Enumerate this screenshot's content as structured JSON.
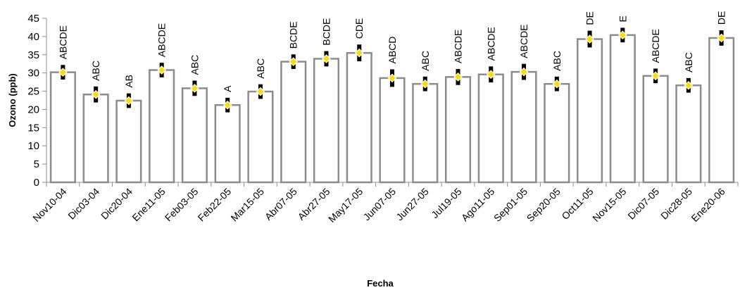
{
  "chart_data": {
    "type": "bar",
    "title": "",
    "xlabel": "Fecha",
    "ylabel": "Ozono (ppb)",
    "ylim": [
      0,
      45
    ],
    "yticks": [
      0,
      5,
      10,
      15,
      20,
      25,
      30,
      35,
      40,
      45
    ],
    "grid": false,
    "legend": "none",
    "categories": [
      "Nov10-04",
      "Dic03-04",
      "Dic20-04",
      "Ene11-05",
      "Feb03-05",
      "Feb22-05",
      "Mar15-05",
      "Abr07-05",
      "Abr27-05",
      "May17-05",
      "Jun07-05",
      "Jun27-05",
      "Jul19-05",
      "Ago11-05",
      "Sep01-05",
      "Sep20-05",
      "Oct11-05",
      "Nov15-05",
      "Dic07-05",
      "Dic28-05",
      "Ene20-06"
    ],
    "values": [
      30.2,
      24.1,
      22.4,
      30.8,
      25.8,
      21.2,
      24.9,
      33.1,
      33.9,
      35.5,
      28.6,
      27.0,
      28.9,
      29.6,
      30.3,
      27.0,
      39.3,
      40.4,
      29.2,
      26.6,
      39.6
    ],
    "error": [
      2.0,
      2.2,
      2.0,
      2.0,
      2.1,
      2.0,
      2.0,
      2.0,
      2.1,
      2.3,
      2.4,
      2.0,
      2.2,
      2.2,
      2.2,
      2.0,
      2.3,
      2.0,
      2.0,
      2.0,
      2.1
    ],
    "letters": [
      "ABCDE",
      "ABC",
      "AB",
      "ABCDE",
      "ABC",
      "A",
      "ABC",
      "BCDE",
      "BCDE",
      "CDE",
      "ABCD",
      "ABC",
      "ABCDE",
      "ABCDE",
      "ABCDE",
      "ABC",
      "DE",
      "E",
      "ABCDE",
      "ABC",
      "DE"
    ],
    "colors": {
      "bar_fill": "#ffffff",
      "bar_stroke": "#8c8c8c",
      "error_bar": "#000000",
      "marker_fill": "#ffdc00",
      "marker_stroke": "#ffffff"
    }
  }
}
